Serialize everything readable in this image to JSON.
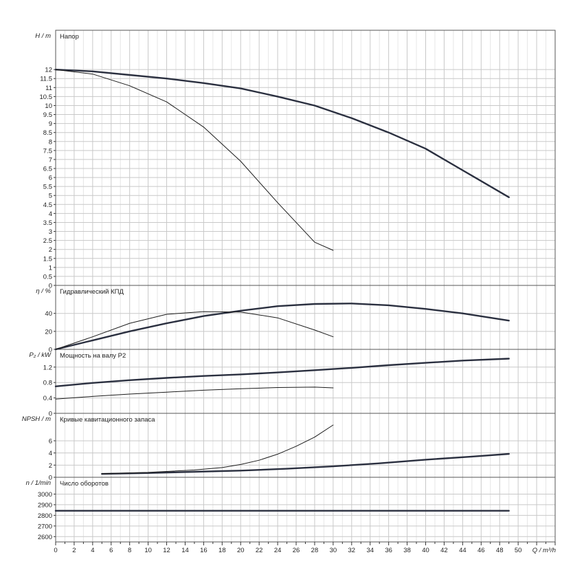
{
  "chart_data": {
    "type": "line",
    "x_axis": {
      "label": "Q / m³/h",
      "range": [
        0,
        54
      ],
      "ticks": [
        0,
        2,
        4,
        6,
        8,
        10,
        12,
        14,
        16,
        18,
        20,
        22,
        24,
        26,
        28,
        30,
        32,
        34,
        36,
        38,
        40,
        42,
        44,
        46,
        48,
        50
      ],
      "minor_step": 1
    },
    "panels": [
      {
        "id": "head",
        "ylabel": "H / m",
        "title": "Напор",
        "ylim": [
          0,
          13
        ],
        "yticks": [
          0,
          0.5,
          1,
          1.5,
          2,
          2.5,
          3,
          3.5,
          4,
          4.5,
          5,
          5.5,
          6,
          6.5,
          7,
          7.5,
          8,
          8.5,
          9,
          9.5,
          10,
          10.5,
          11,
          11.5,
          12
        ],
        "series": [
          {
            "weight": "thick",
            "x": [
              0,
              4,
              8,
              12,
              16,
              20,
              24,
              28,
              32,
              36,
              40,
              44,
              49
            ],
            "y": [
              12,
              11.9,
              11.7,
              11.5,
              11.25,
              10.95,
              10.5,
              10.0,
              9.3,
              8.5,
              7.6,
              6.4,
              4.9
            ]
          },
          {
            "weight": "thin",
            "x": [
              0,
              4,
              8,
              12,
              16,
              20,
              24,
              28,
              30
            ],
            "y": [
              12,
              11.75,
              11.1,
              10.2,
              8.8,
              6.9,
              4.6,
              2.4,
              1.95
            ]
          }
        ]
      },
      {
        "id": "efficiency",
        "ylabel": "η / %",
        "title": "Гидравлический КПД",
        "ylim": [
          0,
          65
        ],
        "yticks": [
          0,
          20,
          40
        ],
        "series": [
          {
            "weight": "thick",
            "x": [
              0,
              4,
              8,
              12,
              16,
              20,
              24,
              28,
              32,
              36,
              40,
              44,
              49
            ],
            "y": [
              0,
              10,
              20,
              29,
              37,
              43,
              48,
              50.5,
              51,
              49,
              45,
              40,
              32
            ]
          },
          {
            "weight": "thin",
            "x": [
              0,
              4,
              8,
              12,
              16,
              20,
              24,
              28,
              30
            ],
            "y": [
              0,
              14,
              29,
              39,
              42,
              41.5,
              35,
              21.5,
              14
            ]
          }
        ]
      },
      {
        "id": "power",
        "ylabel": "P₂ / kW",
        "title": "Мощность на валу P2",
        "ylim": [
          0,
          1.5
        ],
        "yticks": [
          0,
          0.4,
          0.8,
          1.2
        ],
        "series": [
          {
            "weight": "thick",
            "x": [
              0,
              4,
              8,
              12,
              16,
              20,
              24,
              28,
              32,
              36,
              40,
              44,
              49
            ],
            "y": [
              0.7,
              0.79,
              0.86,
              0.92,
              0.97,
              1.01,
              1.06,
              1.12,
              1.18,
              1.25,
              1.31,
              1.37,
              1.42
            ]
          },
          {
            "weight": "thin",
            "x": [
              0,
              4,
              8,
              12,
              16,
              20,
              24,
              28,
              30
            ],
            "y": [
              0.37,
              0.44,
              0.5,
              0.55,
              0.6,
              0.64,
              0.67,
              0.68,
              0.66
            ]
          }
        ]
      },
      {
        "id": "npsh",
        "ylabel": "NPSH / m",
        "title": "Кривые кавитационного запаса",
        "ylim": [
          0,
          9.5
        ],
        "yticks": [
          0,
          2,
          4,
          6
        ],
        "series": [
          {
            "weight": "thick",
            "x": [
              5,
              10,
              15,
              20,
              25,
              30,
              35,
              40,
              45,
              49
            ],
            "y": [
              0.55,
              0.7,
              0.9,
              1.1,
              1.4,
              1.8,
              2.3,
              2.9,
              3.4,
              3.85
            ]
          },
          {
            "weight": "thin",
            "x": [
              5,
              10,
              15,
              18,
              20,
              22,
              24,
              26,
              28,
              30
            ],
            "y": [
              0.6,
              0.8,
              1.2,
              1.6,
              2.1,
              2.8,
              3.8,
              5.1,
              6.6,
              8.6
            ]
          }
        ]
      },
      {
        "id": "speed",
        "ylabel": "n / 1/min",
        "title": "Число оборотов",
        "ylim": [
          2550,
          3100
        ],
        "yticks": [
          2600,
          2700,
          2800,
          2900,
          3000
        ],
        "series": [
          {
            "weight": "thick",
            "x": [
              0,
              49
            ],
            "y": [
              2843,
              2843
            ]
          }
        ]
      }
    ],
    "grid": true,
    "legend": "none"
  }
}
